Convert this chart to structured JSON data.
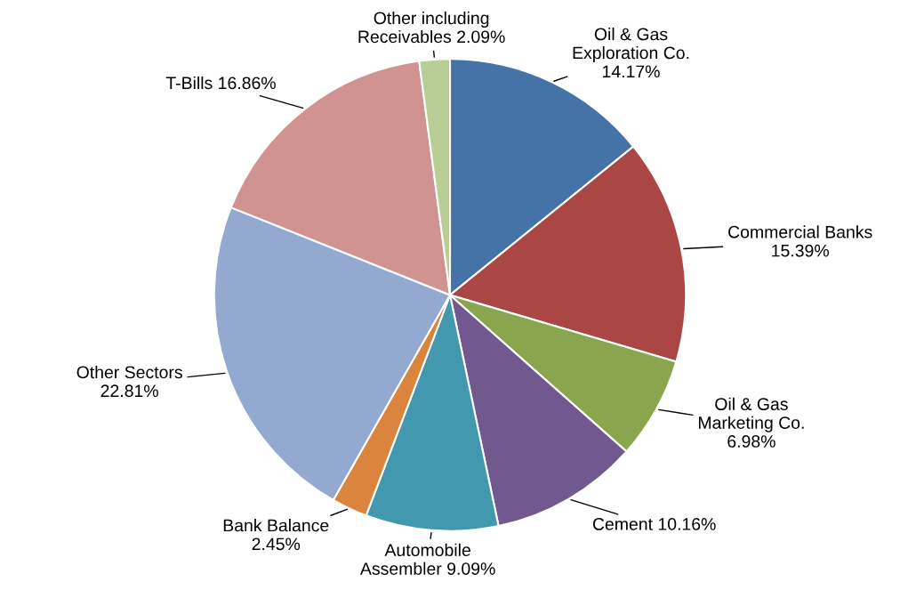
{
  "chart_data": {
    "type": "pie",
    "categories": [
      "Oil & Gas\nExploration Co.",
      "Commercial Banks",
      "Oil & Gas\nMarketing Co.",
      "Cement",
      "Automobile\nAssembler",
      "Bank Balance",
      "Other Sectors",
      "T-Bills",
      "Other including\nReceivables"
    ],
    "values": [
      14.17,
      15.39,
      6.98,
      10.16,
      9.09,
      2.45,
      22.81,
      16.86,
      2.09
    ],
    "value_labels": [
      "14.17%",
      "15.39%",
      "6.98%",
      "10.16%",
      "9.09%",
      "2.45%",
      "22.81%",
      "16.86%",
      "2.09%"
    ],
    "colors": [
      "#4572a7",
      "#aa4643",
      "#89a54e",
      "#71588f",
      "#4198af",
      "#db843d",
      "#93a9cf",
      "#d19392",
      "#b9cd96"
    ],
    "legend": false
  }
}
